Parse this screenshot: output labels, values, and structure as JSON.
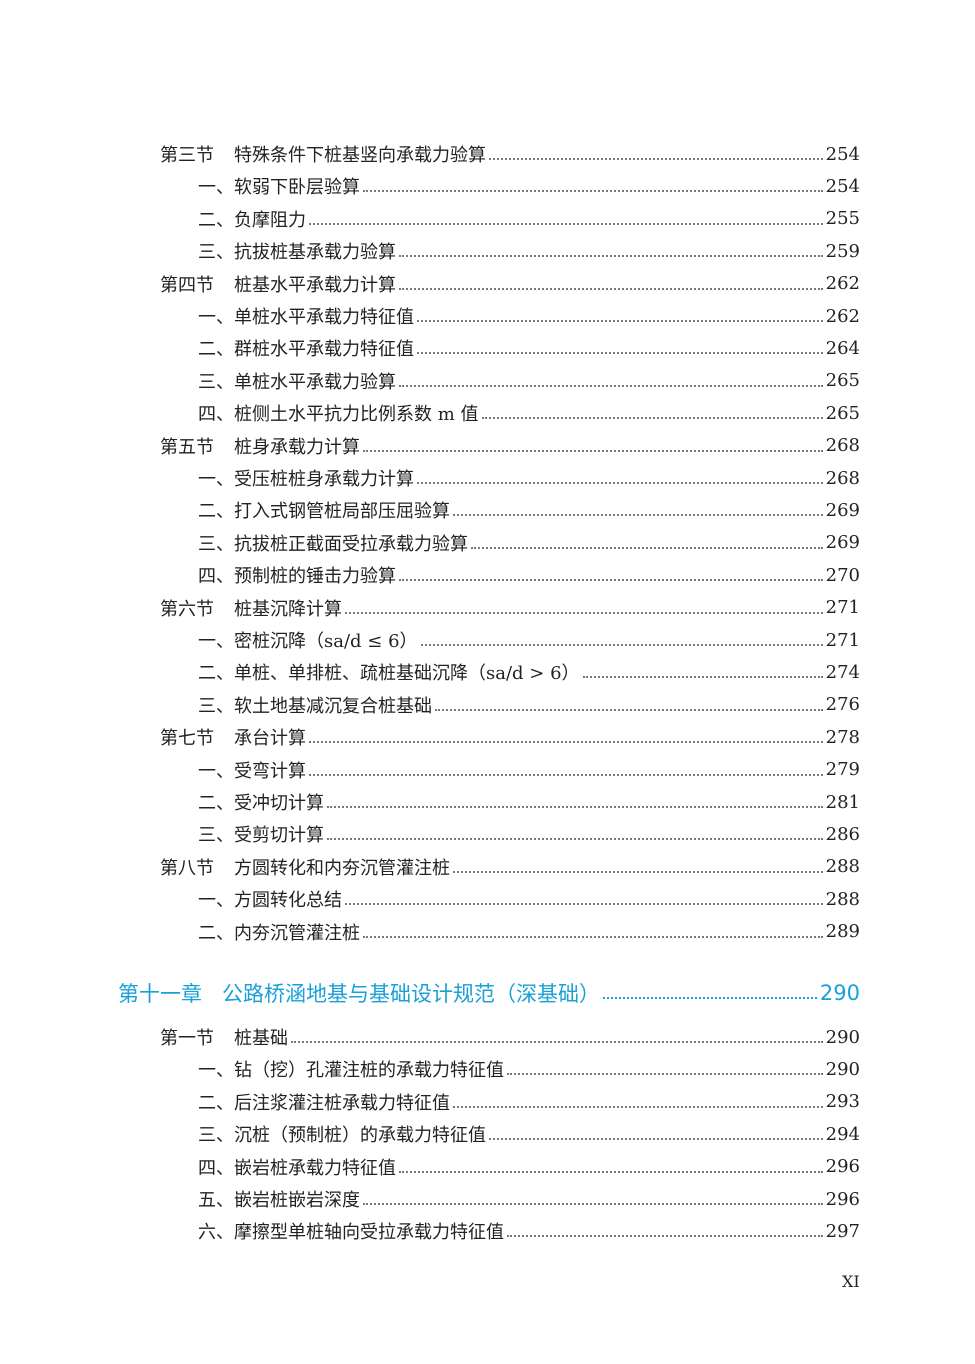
{
  "sections_before": [
    {
      "label": "第三节",
      "title": "特殊条件下桩基竖向承载力验算",
      "page": "254",
      "items": [
        {
          "title": "一、软弱下卧层验算",
          "page": "254"
        },
        {
          "title": "二、负摩阻力",
          "page": "255"
        },
        {
          "title": "三、抗拔桩基承载力验算",
          "page": "259"
        }
      ]
    },
    {
      "label": "第四节",
      "title": "桩基水平承载力计算",
      "page": "262",
      "items": [
        {
          "title": "一、单桩水平承载力特征值",
          "page": "262"
        },
        {
          "title": "二、群桩水平承载力特征值",
          "page": "264"
        },
        {
          "title": "三、单桩水平承载力验算",
          "page": "265"
        },
        {
          "title": "四、桩侧土水平抗力比例系数 m 值",
          "page": "265"
        }
      ]
    },
    {
      "label": "第五节",
      "title": "桩身承载力计算",
      "page": "268",
      "items": [
        {
          "title": "一、受压桩桩身承载力计算",
          "page": "268"
        },
        {
          "title": "二、打入式钢管桩局部压屈验算",
          "page": "269"
        },
        {
          "title": "三、抗拔桩正截面受拉承载力验算",
          "page": "269"
        },
        {
          "title": "四、预制桩的锤击力验算",
          "page": "270"
        }
      ]
    },
    {
      "label": "第六节",
      "title": "桩基沉降计算",
      "page": "271",
      "items": [
        {
          "title": "一、密桩沉降（sa/d ≤ 6）",
          "page": "271"
        },
        {
          "title": "二、单桩、单排桩、疏桩基础沉降（sa/d > 6）",
          "page": "274"
        },
        {
          "title": "三、软土地基减沉复合桩基础",
          "page": "276"
        }
      ]
    },
    {
      "label": "第七节",
      "title": "承台计算",
      "page": "278",
      "items": [
        {
          "title": "一、受弯计算",
          "page": "279"
        },
        {
          "title": "二、受冲切计算",
          "page": "281"
        },
        {
          "title": "三、受剪切计算",
          "page": "286"
        }
      ]
    },
    {
      "label": "第八节",
      "title": "方圆转化和内夯沉管灌注桩",
      "page": "288",
      "items": [
        {
          "title": "一、方圆转化总结",
          "page": "288"
        },
        {
          "title": "二、内夯沉管灌注桩",
          "page": "289"
        }
      ]
    }
  ],
  "chapter": {
    "label": "第十一章",
    "title": "公路桥涵地基与基础设计规范（深基础）",
    "page": "290",
    "sections": [
      {
        "label": "第一节",
        "title": "桩基础",
        "page": "290",
        "items": [
          {
            "title": "一、钻（挖）孔灌注桩的承载力特征值",
            "page": "290"
          },
          {
            "title": "二、后注浆灌注桩承载力特征值",
            "page": "293"
          },
          {
            "title": "三、沉桩（预制桩）的承载力特征值",
            "page": "294"
          },
          {
            "title": "四、嵌岩桩承载力特征值",
            "page": "296"
          },
          {
            "title": "五、嵌岩桩嵌岩深度",
            "page": "296"
          },
          {
            "title": "六、摩擦型单桩轴向受拉承载力特征值",
            "page": "297"
          }
        ]
      }
    ]
  },
  "footer": {
    "page_number": "XI"
  }
}
